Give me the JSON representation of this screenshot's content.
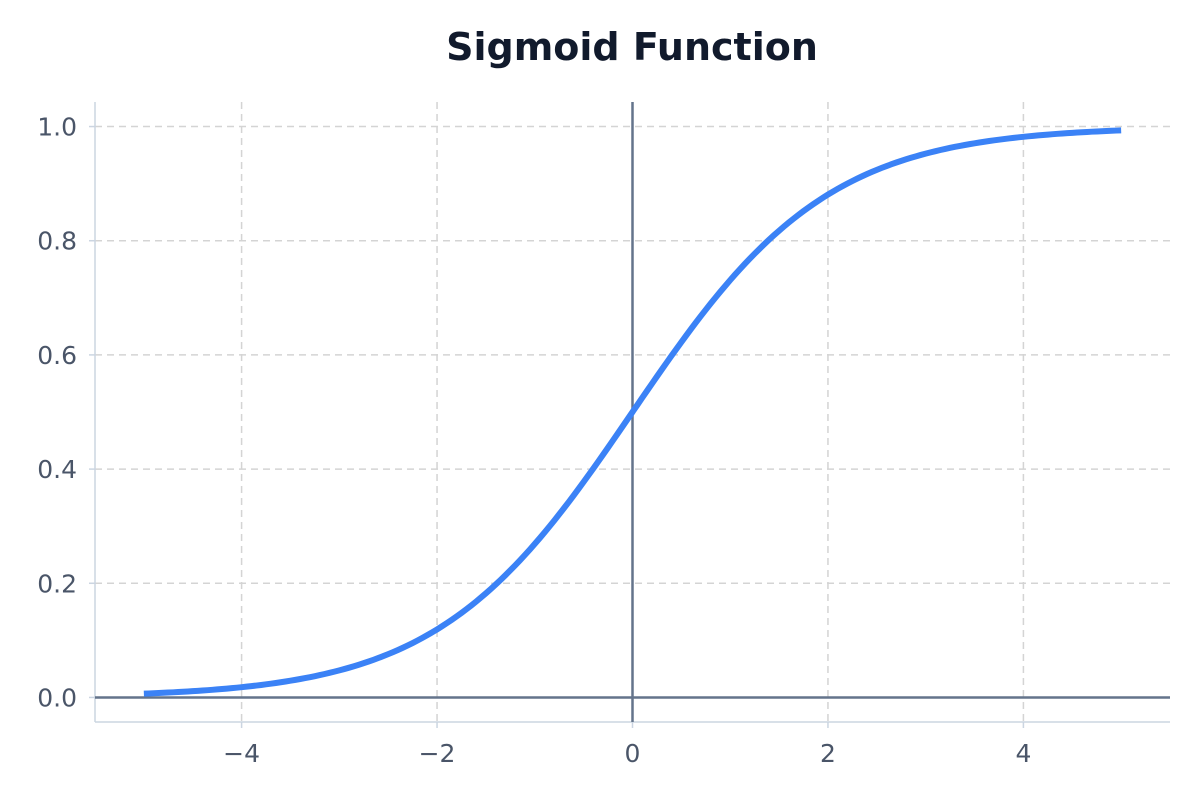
{
  "chart_data": {
    "type": "line",
    "title": "Sigmoid Function",
    "xlabel": "",
    "ylabel": "",
    "xlim": [
      -5.5,
      5.5
    ],
    "ylim": [
      -0.043,
      1.043
    ],
    "x_ticks": [
      -4,
      -2,
      0,
      2,
      4
    ],
    "x_tick_labels": [
      "−4",
      "−2",
      "0",
      "2",
      "4"
    ],
    "y_ticks": [
      0.0,
      0.2,
      0.4,
      0.6,
      0.8,
      1.0
    ],
    "y_tick_labels": [
      "0.0",
      "0.2",
      "0.4",
      "0.6",
      "0.8",
      "1.0"
    ],
    "grid": true,
    "reference_lines": {
      "x": 0,
      "y": 0
    },
    "series": [
      {
        "x": [
          -5,
          -4.5,
          -4,
          -3.5,
          -3,
          -2.5,
          -2,
          -1.5,
          -1,
          -0.5,
          0,
          0.5,
          1,
          1.5,
          2,
          2.5,
          3,
          3.5,
          4,
          4.5,
          5
        ],
        "y": [
          0.0067,
          0.011,
          0.018,
          0.0293,
          0.0474,
          0.0759,
          0.1192,
          0.1824,
          0.2689,
          0.3775,
          0.5,
          0.6225,
          0.7311,
          0.8176,
          0.8808,
          0.9241,
          0.9526,
          0.9707,
          0.982,
          0.989,
          0.9933
        ],
        "color": "#3b82f6"
      }
    ]
  }
}
